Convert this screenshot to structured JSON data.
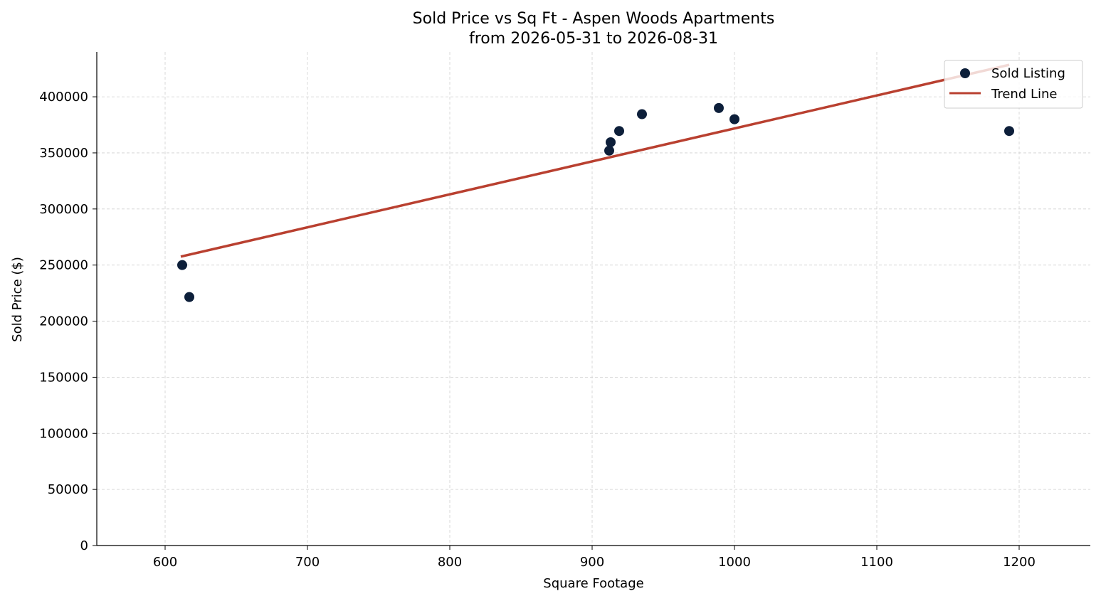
{
  "chart_data": {
    "type": "scatter",
    "title": "Sold Price vs Sq Ft - Aspen Woods Apartments",
    "subtitle": "from 2026-05-31 to 2026-08-31",
    "xlabel": "Square Footage",
    "ylabel": "Sold Price ($)",
    "xlim": [
      552,
      1250
    ],
    "ylim": [
      0,
      440000
    ],
    "xticks": [
      600,
      700,
      800,
      900,
      1000,
      1100,
      1200
    ],
    "yticks": [
      0,
      50000,
      100000,
      150000,
      200000,
      250000,
      300000,
      350000,
      400000
    ],
    "grid": true,
    "legend_position": "top-right",
    "series": [
      {
        "name": "Sold Listing",
        "kind": "scatter",
        "color": "#0d1f3a",
        "points": [
          {
            "x": 612,
            "y": 250000
          },
          {
            "x": 617,
            "y": 221500
          },
          {
            "x": 912,
            "y": 352000
          },
          {
            "x": 913,
            "y": 359500
          },
          {
            "x": 919,
            "y": 369500
          },
          {
            "x": 935,
            "y": 384500
          },
          {
            "x": 989,
            "y": 390000
          },
          {
            "x": 1000,
            "y": 380000
          },
          {
            "x": 1193,
            "y": 369500
          }
        ]
      },
      {
        "name": "Trend Line",
        "kind": "line",
        "color": "#b94030",
        "points": [
          {
            "x": 611,
            "y": 257500
          },
          {
            "x": 1193,
            "y": 428500
          }
        ]
      }
    ]
  }
}
